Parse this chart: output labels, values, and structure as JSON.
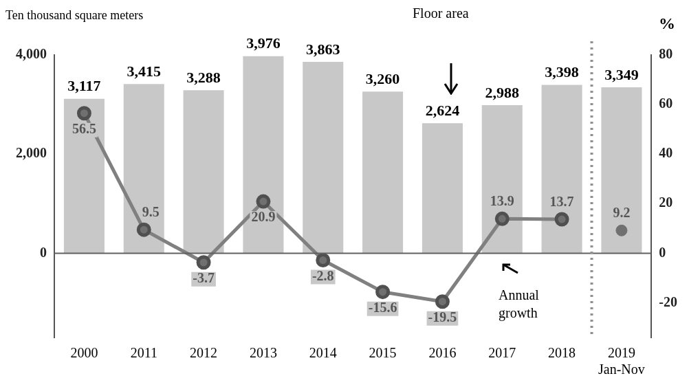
{
  "chart_data": {
    "type": "bar",
    "ylabel": "Ten thousand square meters",
    "y2label": "%",
    "categories": [
      "2000",
      "2011",
      "2012",
      "2013",
      "2014",
      "2015",
      "2016",
      "2017",
      "2018",
      "2019\nJan-Nov"
    ],
    "series": [
      {
        "color": "#c8c8c8",
        "values": [
          3117,
          3415,
          3288,
          3976,
          3863,
          3260,
          2624,
          2988,
          3398,
          3349
        ],
        "value_labels": [
          "3,117",
          "3,415",
          "3,288",
          "3,976",
          "3,863",
          "3,260",
          "2,624",
          "2,988",
          "3,398",
          "3,349"
        ]
      },
      {
        "type": "line",
        "axis": "y2",
        "color": "#808080",
        "values": [
          56.5,
          9.5,
          -3.7,
          20.9,
          -2.8,
          -15.6,
          -19.5,
          13.9,
          13.7,
          null
        ],
        "value_labels": [
          "56.5",
          "9.5",
          "-3.7",
          "20.9",
          "-2.8",
          "-15.6",
          "-19.5",
          "13.9",
          "13.7",
          null
        ]
      },
      {
        "type": "scatter",
        "axis": "y2",
        "color": "#707070",
        "values": [
          null,
          null,
          null,
          null,
          null,
          null,
          null,
          null,
          null,
          9.2
        ],
        "value_labels": [
          null,
          null,
          null,
          null,
          null,
          null,
          null,
          null,
          null,
          "9.2"
        ]
      }
    ],
    "ylim": [
      -1700,
      4000
    ],
    "yticks": [
      {
        "value": 0,
        "label": "0"
      },
      {
        "value": 2000,
        "label": "2,000"
      },
      {
        "value": 4000,
        "label": "4,000"
      }
    ],
    "y2lim": [
      -34,
      80
    ],
    "y2ticks": [
      -20,
      0,
      20,
      40,
      60,
      80
    ],
    "ref_lines": [
      {
        "axis": "y",
        "value": 0,
        "color": "#606060",
        "line_style": "solid"
      },
      {
        "axis": "x",
        "value": "2019\nJan-Nov",
        "color": "#909090",
        "line_style": "dotted"
      }
    ],
    "annotations": [
      "Floor area",
      "Annual growth"
    ],
    "marker": "circle",
    "grid": false,
    "legend": false
  }
}
